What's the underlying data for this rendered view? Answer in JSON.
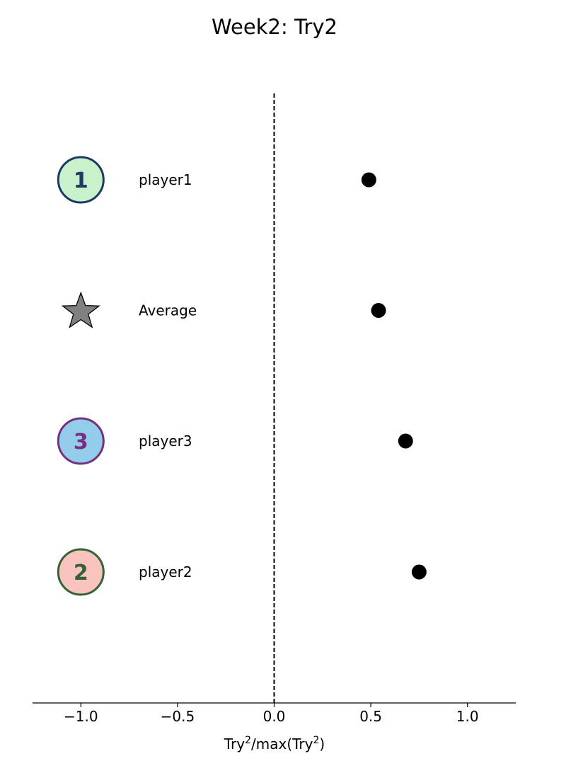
{
  "chart_data": {
    "type": "scatter",
    "title": "Week2: Try2",
    "xlabel": {
      "base": "Try",
      "sup1": "2",
      "mid": "/max(Try",
      "sup2": "2",
      "end": ")"
    },
    "xlim": [
      -1.25,
      1.25
    ],
    "xticks": [
      -1.0,
      -0.5,
      0.0,
      0.5,
      1.0
    ],
    "xtick_labels": [
      "−1.0",
      "−0.5",
      "0.0",
      "0.5",
      "1.0"
    ],
    "reference_line": {
      "x": 0.0,
      "style": "dashed",
      "color": "#000000"
    },
    "marker_color": "#000000",
    "grid": false,
    "rows": [
      {
        "label": "player1",
        "value": 0.49,
        "badge": {
          "kind": "circle",
          "number": "1",
          "fill": "#c9f1cc",
          "stroke": "#1c3a63",
          "text_color": "#1c3a63"
        }
      },
      {
        "label": "Average",
        "value": 0.54,
        "badge": {
          "kind": "star",
          "fill": "#808080",
          "stroke": "#000000"
        }
      },
      {
        "label": "player3",
        "value": 0.68,
        "badge": {
          "kind": "circle",
          "number": "3",
          "fill": "#94ccec",
          "stroke": "#76307f",
          "text_color": "#76307f"
        }
      },
      {
        "label": "player2",
        "value": 0.75,
        "badge": {
          "kind": "circle",
          "number": "2",
          "fill": "#f8c4bd",
          "stroke": "#346135",
          "text_color": "#346135"
        }
      }
    ]
  }
}
